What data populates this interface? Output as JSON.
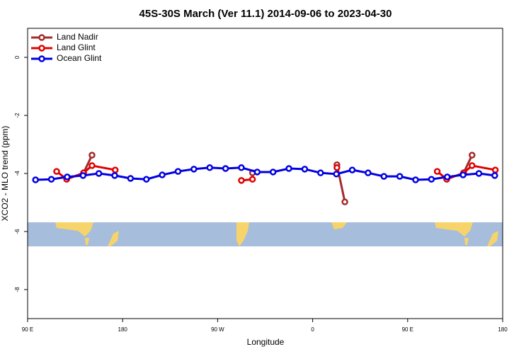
{
  "chart_data": {
    "type": "line",
    "title": "45S-30S March (Ver 11.1)   2014-09-06 to 2023-04-30",
    "x_label": "Longitude",
    "y_label": "XCO2 - MLO trend (ppm)",
    "xlim": [
      90,
      540
    ],
    "xticks": [
      {
        "value": 90,
        "label": "90 E"
      },
      {
        "value": 180,
        "label": "180"
      },
      {
        "value": 270,
        "label": "90 W"
      },
      {
        "value": 360,
        "label": "0"
      },
      {
        "value": 450,
        "label": "90 E"
      },
      {
        "value": 540,
        "label": "180"
      }
    ],
    "ylim": [
      -9,
      1
    ],
    "yticks": [
      0,
      -2,
      -4,
      -6,
      -8
    ],
    "legend": "top-left",
    "series": [
      {
        "name": "Land Nadir",
        "color": "#a52a2a",
        "x": [
          143,
          151,
          null,
          303,
          null,
          383,
          390.5,
          null,
          503,
          511
        ],
        "values": [
          -3.98,
          -3.37,
          null,
          -3.98,
          null,
          -3.7,
          -4.98,
          null,
          -3.98,
          -3.37
        ]
      },
      {
        "name": "Land Glint",
        "color": "#e00000",
        "x": [
          117.5,
          127,
          143,
          151,
          173,
          null,
          292.5,
          303,
          null,
          383,
          null,
          478,
          487,
          503,
          511,
          533
        ],
        "values": [
          -3.93,
          -4.2,
          -3.98,
          -3.73,
          -3.88,
          null,
          -4.24,
          -4.2,
          null,
          -3.8,
          null,
          -3.93,
          -4.2,
          -3.98,
          -3.73,
          -3.88
        ]
      },
      {
        "name": "Ocean Glint",
        "color": "#0000e0",
        "x": [
          97.5,
          112.5,
          127.5,
          142.5,
          157.5,
          172.5,
          187.5,
          202.5,
          217.5,
          232.5,
          247.5,
          262.5,
          277.5,
          292.5,
          307.5,
          322.5,
          337.5,
          352.5,
          367.5,
          382.5,
          397.5,
          412.5,
          427.5,
          442.5,
          457.5,
          472.5,
          487.5,
          502.5,
          517.5,
          532.5
        ],
        "values": [
          -4.22,
          -4.2,
          -4.12,
          -4.07,
          -4.0,
          -4.07,
          -4.17,
          -4.2,
          -4.05,
          -3.93,
          -3.85,
          -3.8,
          -3.83,
          -3.8,
          -3.95,
          -3.95,
          -3.83,
          -3.85,
          -3.98,
          -4.02,
          -3.88,
          -3.98,
          -4.1,
          -4.1,
          -4.22,
          -4.2,
          -4.12,
          -4.05,
          -4.0,
          -4.07
        ]
      }
    ]
  }
}
